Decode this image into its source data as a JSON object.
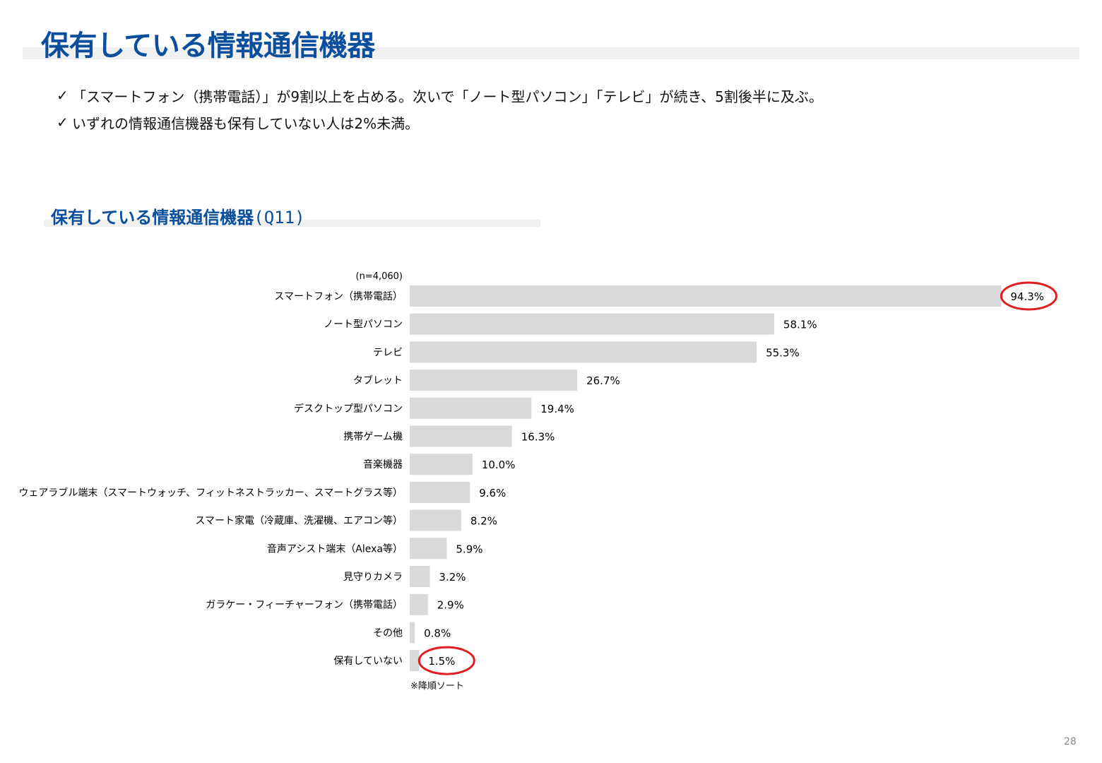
{
  "page": {
    "title": "保有している情報通信機器",
    "bullets": [
      "「スマートフォン（携帯電話）」が9割以上を占める。次いで「ノート型パソコン」「テレビ」が続き、5割後半に及ぶ。",
      "いずれの情報通信機器も保有していない人は2%未満。"
    ],
    "bullet_icon": "check-icon",
    "section_title_main": "保有している情報通信機器",
    "section_title_q": "(Q11)",
    "page_number": "28",
    "colors": {
      "title": "#0b4f9c",
      "bar": "#d9d9d9",
      "highlight": "#e02020",
      "band": "#f0f0f0"
    }
  },
  "chart_data": {
    "type": "bar",
    "orientation": "horizontal",
    "n_label": "(n=4,060)",
    "note": "※降順ソート",
    "categories": [
      "スマートフォン（携帯電話）",
      "ノート型パソコン",
      "テレビ",
      "タブレット",
      "デスクトップ型パソコン",
      "携帯ゲーム機",
      "音楽機器",
      "ウェアラブル端末（スマートウォッチ、フィットネストラッカー、スマートグラス等）",
      "スマート家電（冷蔵庫、洗濯機、エアコン等）",
      "音声アシスト端末（Alexa等）",
      "見守りカメラ",
      "ガラケー・フィーチャーフォン（携帯電話）",
      "その他",
      "保有していない"
    ],
    "values": [
      94.3,
      58.1,
      55.3,
      26.7,
      19.4,
      16.3,
      10.0,
      9.6,
      8.2,
      5.9,
      3.2,
      2.9,
      0.8,
      1.5
    ],
    "value_labels": [
      "94.3%",
      "58.1%",
      "55.3%",
      "26.7%",
      "19.4%",
      "16.3%",
      "10.0%",
      "9.6%",
      "8.2%",
      "5.9%",
      "3.2%",
      "2.9%",
      "0.8%",
      "1.5%"
    ],
    "unit": "%",
    "highlighted": [
      "スマートフォン（携帯電話）",
      "保有していない"
    ],
    "xlim": [
      0,
      100
    ],
    "grid": false,
    "legend": false
  }
}
